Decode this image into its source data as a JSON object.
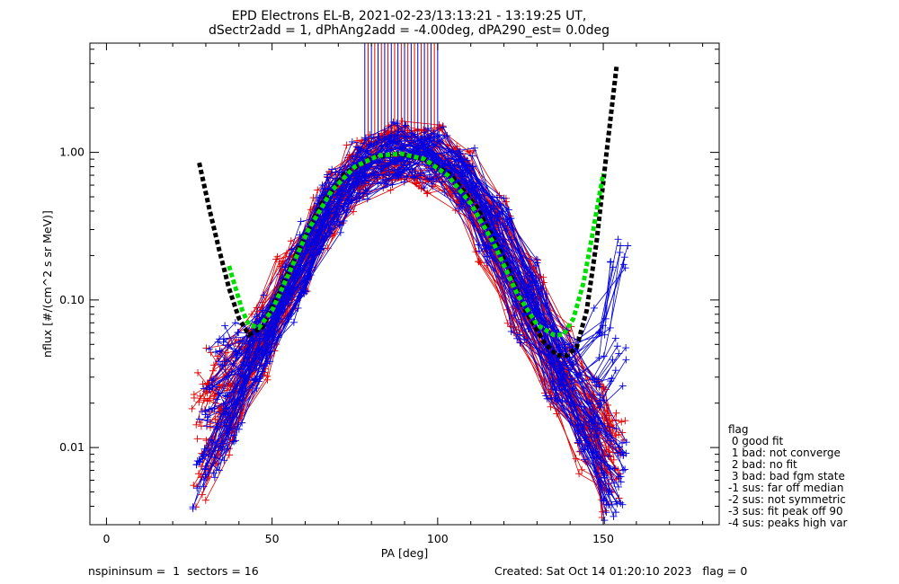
{
  "chart_data": {
    "type": "line",
    "title": "EPD Electrons EL-B, 2021-02-23/13:13:21 - 13:19:25 UT,",
    "subtitle": "dSectr2add = 1, dPhAng2add = -4.00deg, dPA290_est=   0.0deg",
    "xlabel": "PA [deg]",
    "ylabel": "nflux [#/(cm^2 s sr MeV)]",
    "xlim": [
      -5,
      185
    ],
    "ylim": [
      0.003,
      5.5
    ],
    "yscale": "log",
    "xticks": [
      0,
      50,
      100,
      150
    ],
    "xtick_labels": [
      "0",
      "50",
      "100",
      "150"
    ],
    "yticks": [
      0.01,
      0.1,
      1.0
    ],
    "ytick_labels": [
      "0.01",
      "0.10",
      "1.00"
    ],
    "series": [
      {
        "color": "#e00000",
        "style": "line-with-plus-markers",
        "description_values": "many overlapping sweeps",
        "curves": [
          {
            "x": [
              29,
              36,
              45,
              55,
              65,
              75,
              85,
              95,
              105,
              115,
              125,
              135,
              145,
              152
            ],
            "y": [
              0.006,
              0.012,
              0.04,
              0.12,
              0.35,
              0.72,
              0.95,
              0.9,
              0.62,
              0.28,
              0.09,
              0.03,
              0.012,
              0.006
            ]
          },
          {
            "x": [
              31,
              38,
              47,
              57,
              67,
              77,
              87,
              97,
              107,
              117,
              127,
              137,
              147,
              153
            ],
            "y": [
              0.014,
              0.02,
              0.05,
              0.16,
              0.42,
              0.8,
              1.05,
              0.95,
              0.7,
              0.33,
              0.11,
              0.035,
              0.015,
              0.009
            ]
          },
          {
            "x": [
              28,
              35,
              44,
              54,
              64,
              74,
              84,
              94,
              104,
              114,
              124,
              134,
              144,
              151
            ],
            "y": [
              0.022,
              0.03,
              0.06,
              0.14,
              0.3,
              0.62,
              0.85,
              0.82,
              0.55,
              0.25,
              0.08,
              0.025,
              0.01,
              0.005
            ]
          },
          {
            "x": [
              33,
              40,
              49,
              59,
              69,
              79,
              89,
              99,
              109,
              119,
              129,
              139,
              149,
              154
            ],
            "y": [
              0.035,
              0.04,
              0.07,
              0.2,
              0.5,
              0.9,
              1.1,
              1.0,
              0.75,
              0.38,
              0.14,
              0.045,
              0.02,
              0.012
            ]
          },
          {
            "x": [
              30,
              37,
              46,
              56,
              66,
              76,
              86,
              96,
              106,
              116,
              126,
              136,
              146,
              152
            ],
            "y": [
              0.009,
              0.016,
              0.045,
              0.13,
              0.38,
              0.75,
              1.0,
              0.92,
              0.66,
              0.3,
              0.1,
              0.032,
              0.014,
              0.008
            ]
          },
          {
            "x": [
              32,
              39,
              48,
              58,
              68,
              78,
              88,
              98,
              108,
              118,
              128,
              138,
              148,
              153
            ],
            "y": [
              0.018,
              0.025,
              0.055,
              0.18,
              0.46,
              0.85,
              1.08,
              0.98,
              0.72,
              0.35,
              0.12,
              0.04,
              0.018,
              0.01
            ]
          }
        ],
        "spikes_x": [
          79,
          81,
          83,
          85,
          87,
          89,
          91,
          93,
          95,
          97,
          99
        ]
      },
      {
        "color": "#0000e0",
        "style": "line-with-plus-markers",
        "curves": [
          {
            "x": [
              31,
              38,
              47,
              57,
              67,
              77,
              87,
              97,
              107,
              117,
              127,
              137,
              147,
              154
            ],
            "y": [
              0.012,
              0.02,
              0.045,
              0.14,
              0.4,
              0.78,
              0.98,
              0.93,
              0.66,
              0.3,
              0.1,
              0.03,
              0.013,
              0.007
            ]
          },
          {
            "x": [
              33,
              40,
              49,
              59,
              69,
              79,
              89,
              99,
              109,
              119,
              129,
              139,
              149,
              155
            ],
            "y": [
              0.03,
              0.035,
              0.06,
              0.18,
              0.48,
              0.86,
              1.05,
              0.97,
              0.7,
              0.34,
              0.12,
              0.04,
              0.02,
              0.04
            ]
          },
          {
            "x": [
              30,
              37,
              46,
              56,
              66,
              76,
              86,
              96,
              106,
              116,
              126,
              136,
              146,
              153
            ],
            "y": [
              0.008,
              0.015,
              0.04,
              0.12,
              0.34,
              0.7,
              0.92,
              0.88,
              0.6,
              0.27,
              0.085,
              0.028,
              0.011,
              0.005
            ]
          },
          {
            "x": [
              34,
              41,
              50,
              60,
              70,
              80,
              90,
              100,
              110,
              120,
              130,
              140,
              150,
              155
            ],
            "y": [
              0.055,
              0.05,
              0.075,
              0.22,
              0.55,
              0.92,
              1.0,
              0.9,
              0.62,
              0.3,
              0.1,
              0.035,
              0.06,
              0.17
            ]
          },
          {
            "x": [
              32,
              39,
              48,
              58,
              68,
              78,
              88,
              98,
              108,
              118,
              128,
              138,
              148,
              154
            ],
            "y": [
              0.02,
              0.028,
              0.05,
              0.16,
              0.44,
              0.82,
              1.02,
              0.95,
              0.68,
              0.32,
              0.11,
              0.036,
              0.016,
              0.009
            ]
          },
          {
            "x": [
              29,
              36,
              45,
              55,
              65,
              75,
              85,
              95,
              105,
              115,
              125,
              135,
              145,
              152
            ],
            "y": [
              0.006,
              0.011,
              0.035,
              0.11,
              0.32,
              0.68,
              0.9,
              0.86,
              0.58,
              0.26,
              0.08,
              0.026,
              0.01,
              0.006
            ]
          }
        ],
        "spikes_x": [
          78,
          80,
          82,
          84,
          86,
          88,
          90,
          92,
          94,
          96,
          98,
          100
        ]
      },
      {
        "color": "#000000",
        "style": "dashed-thick",
        "x": [
          28,
          31,
          34,
          37,
          40,
          43,
          47,
          52,
          58,
          65,
          72,
          80,
          88,
          96,
          104,
          112,
          120,
          126,
          132,
          136,
          139,
          142,
          145,
          148,
          151,
          154
        ],
        "y": [
          0.85,
          0.42,
          0.22,
          0.12,
          0.075,
          0.058,
          0.065,
          0.11,
          0.22,
          0.45,
          0.72,
          0.92,
          0.98,
          0.9,
          0.7,
          0.42,
          0.19,
          0.09,
          0.052,
          0.042,
          0.042,
          0.048,
          0.085,
          0.25,
          1.0,
          3.8
        ]
      },
      {
        "color": "#00e000",
        "style": "dashed-thick",
        "x": [
          37,
          39,
          41,
          43,
          46,
          50,
          55,
          61,
          68,
          75,
          82,
          89,
          96,
          103,
          110,
          117,
          124,
          130,
          135,
          138,
          141,
          144,
          147,
          150
        ],
        "y": [
          0.17,
          0.12,
          0.085,
          0.068,
          0.065,
          0.085,
          0.15,
          0.3,
          0.55,
          0.8,
          0.95,
          0.98,
          0.9,
          0.7,
          0.45,
          0.24,
          0.11,
          0.068,
          0.058,
          0.058,
          0.075,
          0.13,
          0.3,
          0.72
        ]
      }
    ],
    "legend": {
      "position": "right",
      "title": "flag",
      "entries": [
        " 0 good fit",
        " 1 bad: not converge",
        " 2 bad: no fit",
        " 3 bad: bad fgm state",
        "-1 sus: far off median",
        "-2 sus: not symmetric",
        "-3 sus: fit peak off 90",
        "-4 sus: peaks high var"
      ]
    },
    "grid": false
  },
  "footer": {
    "left": "nspininsum =  1  sectors = 16",
    "right": "Created: Sat Oct 14 01:20:10 2023   flag = 0"
  }
}
